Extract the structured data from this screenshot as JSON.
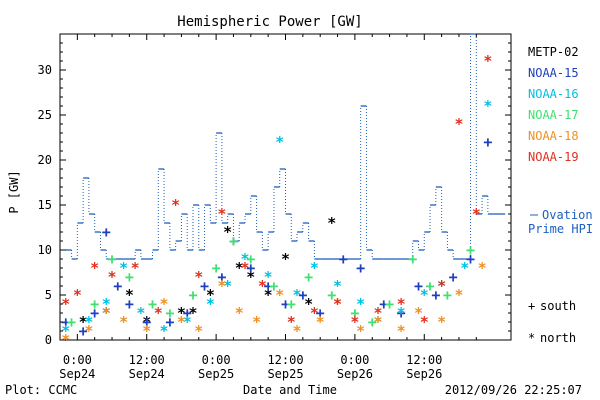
{
  "chart_data": {
    "type": "scatter",
    "title": "Hemispheric Power [GW]",
    "ylabel": "P [GW]",
    "xlabel": "Date and Time",
    "xlim_hours": [
      -3,
      75
    ],
    "ylim": [
      0,
      34
    ],
    "yticks": [
      0,
      5,
      10,
      15,
      20,
      25,
      30
    ],
    "xticks": [
      {
        "t": 0,
        "label1": "0:00",
        "label2": "Sep24"
      },
      {
        "t": 12,
        "label1": "12:00",
        "label2": "Sep24"
      },
      {
        "t": 24,
        "label1": "0:00",
        "label2": "Sep25"
      },
      {
        "t": 36,
        "label1": "12:00",
        "label2": "Sep25"
      },
      {
        "t": 48,
        "label1": "0:00",
        "label2": "Sep26"
      },
      {
        "t": 60,
        "label1": "12:00",
        "label2": "Sep26"
      }
    ],
    "marker_legend": [
      {
        "symbol": "+",
        "label": "south"
      },
      {
        "symbol": "*",
        "label": "north"
      }
    ],
    "ovation": {
      "name": "Ovation Prime HPI",
      "label_line1": "Ovation",
      "label_line2": "Prime HPI",
      "color": "#1f5fbf",
      "x": [
        -1.5,
        -0.5,
        0.5,
        1.5,
        2.5,
        3.5,
        4.5,
        5.5,
        6.5,
        7.5,
        8.5,
        9.5,
        10.5,
        11.5,
        12.5,
        13.5,
        14.5,
        15.5,
        16.5,
        17.5,
        18.5,
        19.5,
        20.5,
        21.5,
        22.5,
        23.5,
        24.5,
        25.5,
        26.5,
        27.5,
        28.5,
        29.5,
        30.5,
        31.5,
        32.5,
        33.5,
        34.5,
        35.5,
        36.5,
        37.5,
        38.5,
        39.5,
        40.5,
        41.5,
        42.5,
        43.5,
        44.5,
        45.5,
        46.5,
        47.5,
        48.5,
        49.5,
        50.5,
        51.5,
        52.5,
        53.5,
        54.5,
        55.5,
        56.5,
        57.5,
        58.5,
        59.5,
        60.5,
        61.5,
        62.5,
        63.5,
        64.5,
        65.5,
        66.5,
        67.5,
        68.5,
        69.5,
        70.5,
        71.5,
        72.5,
        73.5
      ],
      "y": [
        10,
        9,
        13,
        18,
        14,
        12,
        10,
        9,
        9,
        9,
        9,
        9,
        10,
        9,
        9,
        10,
        19,
        13,
        10,
        11,
        14,
        10,
        15,
        10,
        15,
        13,
        23,
        13,
        14,
        11,
        13,
        14,
        16,
        12,
        10,
        12,
        17,
        19,
        14,
        11,
        12,
        13,
        11,
        9,
        9,
        9,
        9,
        9,
        9,
        9,
        9,
        26,
        10,
        9,
        9,
        9,
        9,
        9,
        9,
        9,
        11,
        10,
        12,
        15,
        17,
        12,
        10,
        9,
        9,
        9,
        34,
        14,
        16,
        14,
        14,
        14
      ]
    },
    "series": [
      {
        "name": "METP-02",
        "color": "#000000",
        "marker": "*",
        "x": [
          1,
          5,
          9,
          12,
          18,
          20,
          23,
          26,
          28,
          30,
          33,
          36,
          40,
          44
        ],
        "y": [
          2,
          3,
          5,
          2,
          3,
          3,
          5,
          12,
          8,
          7,
          5,
          9,
          4,
          13
        ]
      },
      {
        "name": "NOAA-15",
        "color": "#1f3fbf",
        "marker": "+",
        "x": [
          -2,
          1,
          3,
          5,
          7,
          9,
          12,
          16,
          19,
          22,
          25,
          27,
          30,
          33,
          36,
          39,
          42,
          46,
          49,
          53,
          56,
          59,
          62,
          65,
          68,
          71
        ],
        "y": [
          2,
          1,
          3,
          12,
          6,
          4,
          2,
          2,
          3,
          6,
          7,
          11,
          8,
          6,
          4,
          5,
          3,
          9,
          8,
          4,
          3,
          6,
          5,
          7,
          9,
          22
        ]
      },
      {
        "name": "NOAA-16",
        "color": "#00c0e0",
        "marker": "*",
        "x": [
          -2,
          2,
          5,
          8,
          11,
          15,
          19,
          23,
          26,
          29,
          33,
          35,
          38,
          41,
          45,
          49,
          52,
          56,
          60,
          63,
          67,
          71
        ],
        "y": [
          1,
          2,
          4,
          8,
          3,
          1,
          2,
          4,
          6,
          9,
          7,
          22,
          5,
          8,
          6,
          4,
          2,
          3,
          5,
          6,
          8,
          26
        ]
      },
      {
        "name": "NOAA-17",
        "color": "#40e070",
        "marker": "+",
        "x": [
          -1,
          3,
          6,
          9,
          13,
          16,
          20,
          24,
          27,
          30,
          34,
          37,
          40,
          44,
          48,
          51,
          54,
          58,
          61,
          64,
          68
        ],
        "y": [
          2,
          4,
          9,
          7,
          4,
          3,
          5,
          8,
          11,
          9,
          6,
          4,
          7,
          5,
          3,
          2,
          4,
          9,
          6,
          5,
          10
        ]
      },
      {
        "name": "NOAA-18",
        "color": "#f09020",
        "marker": "*",
        "x": [
          -2,
          2,
          5,
          8,
          12,
          15,
          18,
          21,
          25,
          28,
          31,
          35,
          38,
          42,
          45,
          49,
          52,
          56,
          59,
          63,
          66,
          70
        ],
        "y": [
          0,
          1,
          3,
          2,
          1,
          4,
          2,
          1,
          6,
          3,
          2,
          5,
          1,
          2,
          4,
          1,
          2,
          1,
          3,
          2,
          5,
          8
        ]
      },
      {
        "name": "NOAA-19",
        "color": "#e03020",
        "marker": "*",
        "x": [
          -2,
          0,
          3,
          6,
          10,
          14,
          17,
          21,
          25,
          29,
          32,
          37,
          41,
          45,
          48,
          52,
          56,
          60,
          63,
          66,
          69,
          71
        ],
        "y": [
          4,
          5,
          8,
          7,
          8,
          3,
          15,
          7,
          14,
          8,
          6,
          2,
          3,
          4,
          2,
          3,
          4,
          2,
          6,
          24,
          14,
          31
        ]
      }
    ]
  },
  "footer": {
    "plot_credit": "Plot: CCMC",
    "timestamp": "2012/09/26 22:25:07"
  }
}
